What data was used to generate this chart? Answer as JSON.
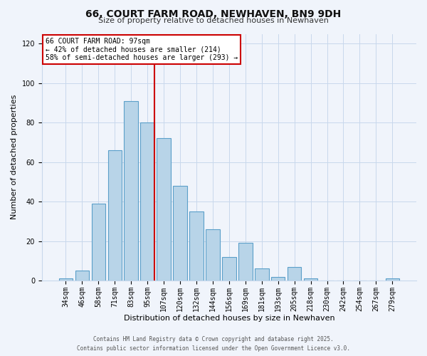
{
  "title": "66, COURT FARM ROAD, NEWHAVEN, BN9 9DH",
  "subtitle": "Size of property relative to detached houses in Newhaven",
  "xlabel": "Distribution of detached houses by size in Newhaven",
  "ylabel": "Number of detached properties",
  "bar_labels": [
    "34sqm",
    "46sqm",
    "58sqm",
    "71sqm",
    "83sqm",
    "95sqm",
    "107sqm",
    "120sqm",
    "132sqm",
    "144sqm",
    "156sqm",
    "169sqm",
    "181sqm",
    "193sqm",
    "205sqm",
    "218sqm",
    "230sqm",
    "242sqm",
    "254sqm",
    "267sqm",
    "279sqm"
  ],
  "bar_values": [
    1,
    5,
    39,
    66,
    91,
    80,
    72,
    48,
    35,
    26,
    12,
    19,
    6,
    2,
    7,
    1,
    0,
    0,
    0,
    0,
    1
  ],
  "bar_color": "#b8d4e8",
  "bar_edge_color": "#5b9fc9",
  "vline_color": "#cc0000",
  "vline_bar_index": 5,
  "annotation_title": "66 COURT FARM ROAD: 97sqm",
  "annotation_line1": "← 42% of detached houses are smaller (214)",
  "annotation_line2": "58% of semi-detached houses are larger (293) →",
  "annotation_box_color": "#ffffff",
  "annotation_box_edge": "#cc0000",
  "ylim": [
    0,
    125
  ],
  "yticks": [
    0,
    20,
    40,
    60,
    80,
    100,
    120
  ],
  "footer1": "Contains HM Land Registry data © Crown copyright and database right 2025.",
  "footer2": "Contains public sector information licensed under the Open Government Licence v3.0.",
  "bg_color": "#f0f4fb",
  "grid_color": "#c8d8ec",
  "title_fontsize": 10,
  "subtitle_fontsize": 8,
  "ylabel_fontsize": 8,
  "xlabel_fontsize": 8,
  "tick_fontsize": 7,
  "footer_fontsize": 5.5,
  "ann_fontsize": 7
}
